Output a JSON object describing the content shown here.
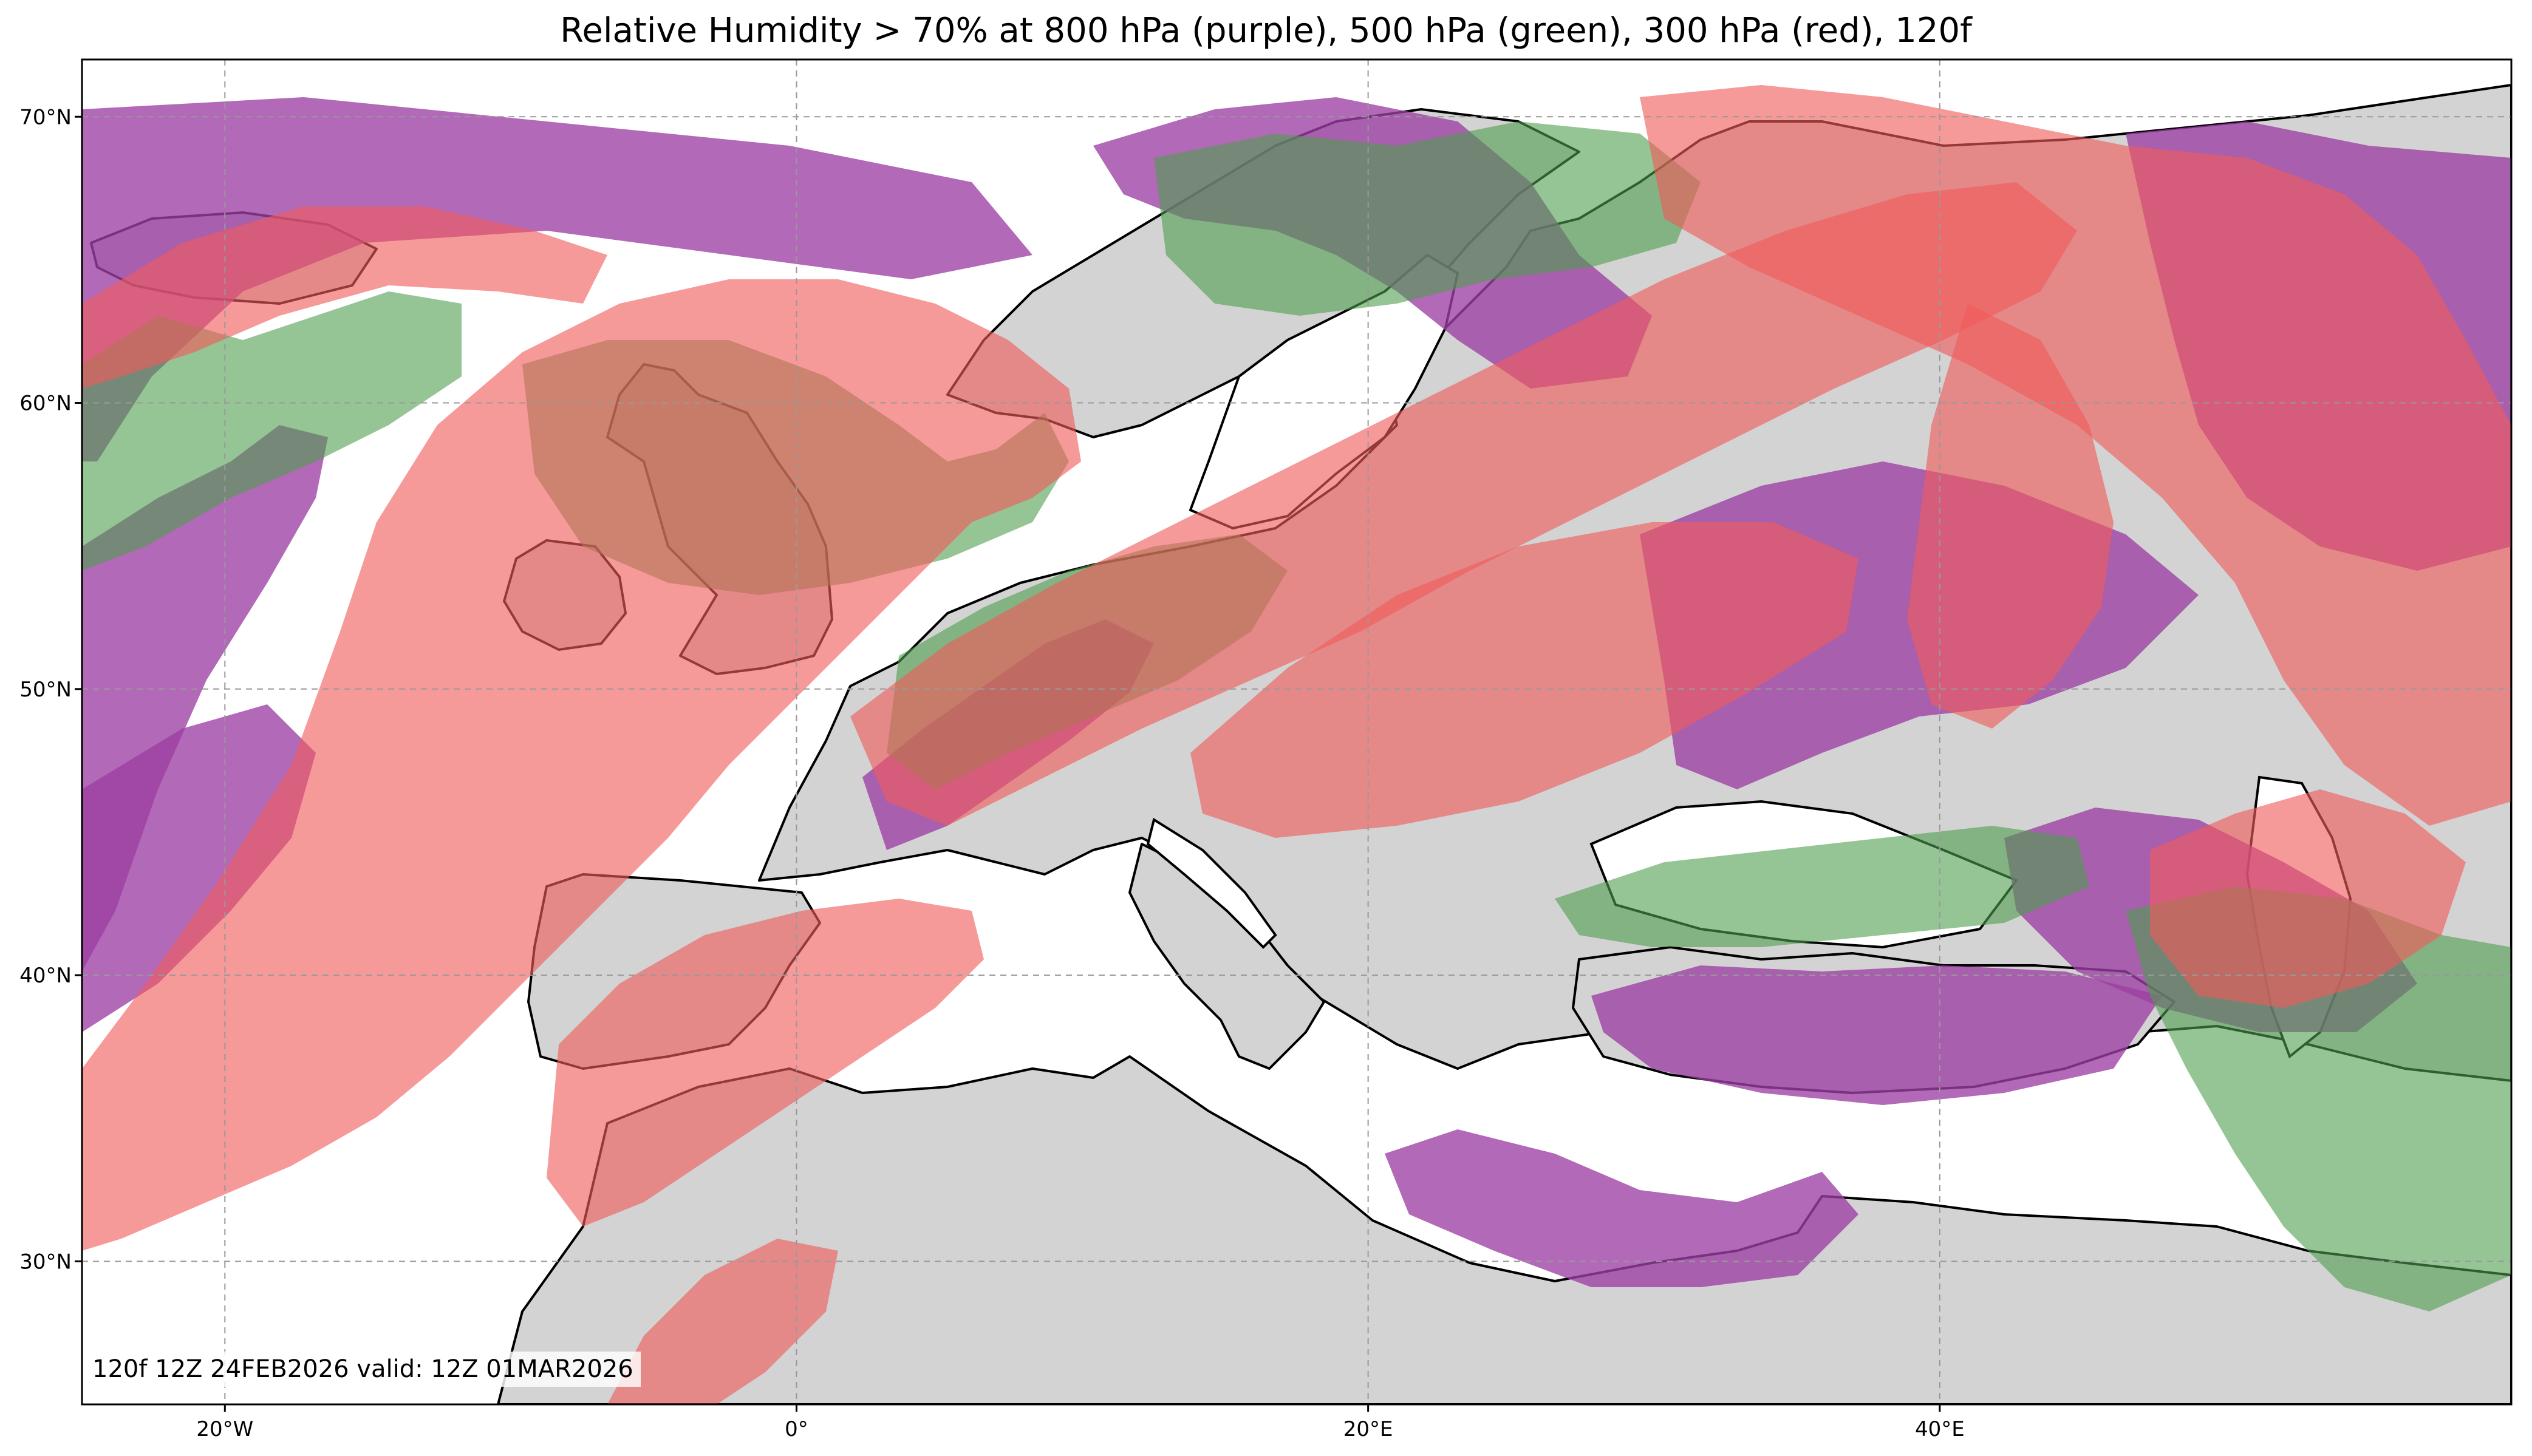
{
  "title": "Relative Humidity > 70% at 800 hPa (purple), 500 hPa (green), 300 hPa (red), 120f",
  "stamp": "120f 12Z 24FEB2026 valid: 12Z 01MAR2026",
  "axes": {
    "lon_range": [
      -25,
      60
    ],
    "lat_range": [
      25,
      72
    ],
    "x_ticks": [
      {
        "lon": -20,
        "label": "20°W"
      },
      {
        "lon": 0,
        "label": "0°"
      },
      {
        "lon": 20,
        "label": "20°E"
      },
      {
        "lon": 40,
        "label": "40°E"
      }
    ],
    "y_ticks": [
      {
        "lat": 30,
        "label": "30°N"
      },
      {
        "lat": 40,
        "label": "40°N"
      },
      {
        "lat": 50,
        "label": "50°N"
      },
      {
        "lat": 60,
        "label": "60°N"
      },
      {
        "lat": 70,
        "label": "70°N"
      }
    ],
    "grid": "dashed"
  },
  "colors": {
    "land": "#d3d3d3",
    "ocean": "#ffffff",
    "rh_800hPa": "#9c3fa3",
    "rh_500hPa": "#4f9e4f",
    "rh_300hPa": "#f05a5a",
    "coast": "#000000"
  },
  "layers": [
    "800 hPa (purple)",
    "500 hPa (green)",
    "300 hPa (red)"
  ]
}
